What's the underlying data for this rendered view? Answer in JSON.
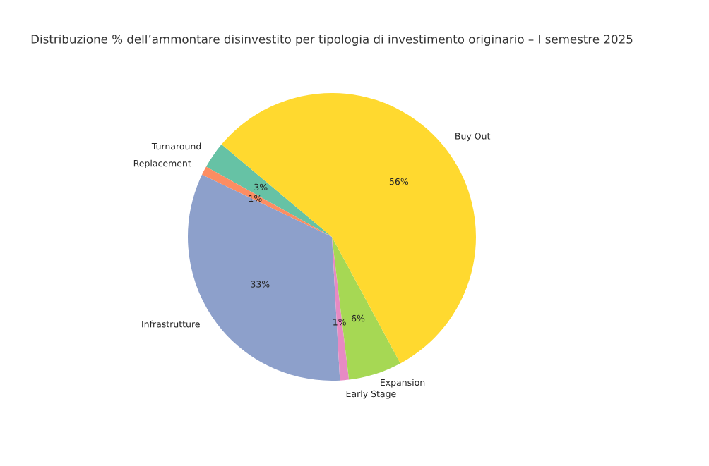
{
  "chart_data": {
    "type": "pie",
    "title": "Distribuzione % dell’ammontare disinvestito per tipologia di investimento originario – I semestre 2025",
    "categories": [
      "Turnaround",
      "Replacement",
      "Infrastrutture",
      "Early Stage",
      "Expansion",
      "Buy Out"
    ],
    "values": [
      3,
      1,
      33,
      1,
      6,
      56
    ],
    "colors": [
      "#66c2a5",
      "#fc8d62",
      "#8da0cb",
      "#e78ac3",
      "#a6d854",
      "#ffd92f"
    ],
    "value_labels": [
      "3%",
      "1%",
      "33%",
      "1%",
      "6%",
      "56%"
    ]
  }
}
